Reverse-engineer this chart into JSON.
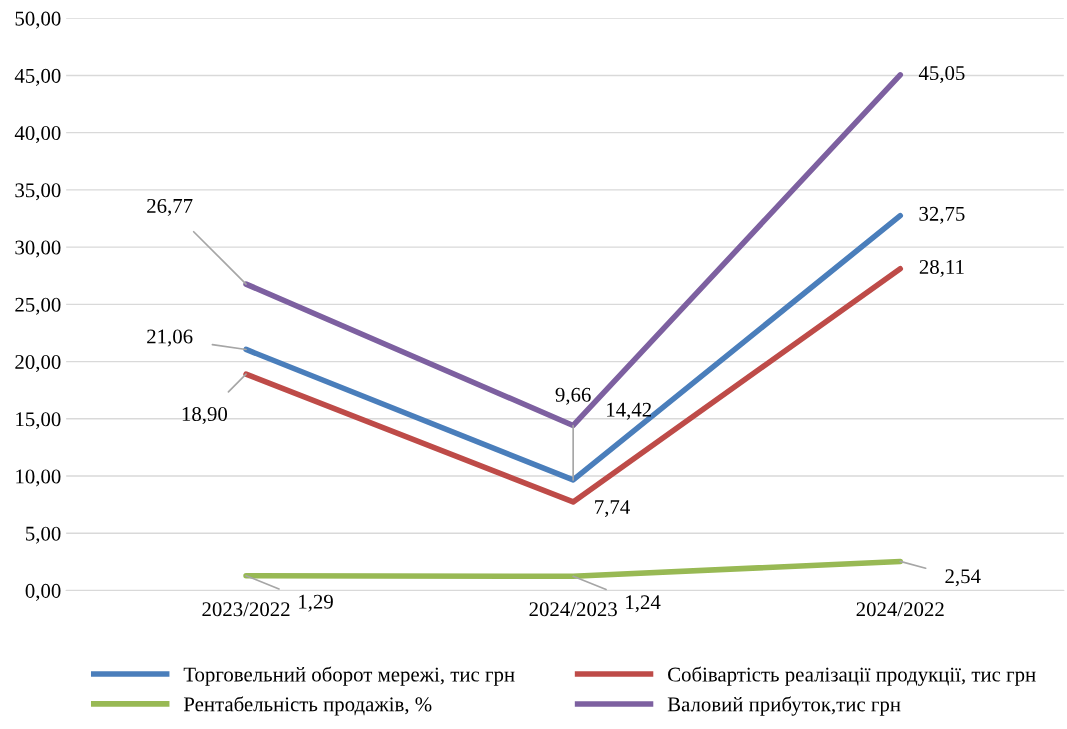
{
  "chart_data": {
    "type": "line",
    "categories": [
      "2023/2022",
      "2024/2023",
      "2024/2022"
    ],
    "series": [
      {
        "name": "Торговельний оборот мережі, тис грн",
        "color": "#4a7ebb",
        "values": [
          21.06,
          9.66,
          32.75
        ],
        "value_labels": [
          "21,06",
          "9,66",
          "32,75"
        ]
      },
      {
        "name": "Собівартість реалізації продукції, тис грн",
        "color": "#be4b48",
        "values": [
          18.9,
          7.74,
          28.11
        ],
        "value_labels": [
          "18,90",
          "7,74",
          "28,11"
        ]
      },
      {
        "name": "Рентабельність продажів, %",
        "color": "#98b954",
        "values": [
          1.29,
          1.24,
          2.54
        ],
        "value_labels": [
          "1,29",
          "1,24",
          "2,54"
        ]
      },
      {
        "name": "Валовий прибуток,тис грн",
        "color": "#7d60a0",
        "values": [
          26.77,
          14.42,
          45.05
        ],
        "value_labels": [
          "26,77",
          "14,42",
          "45,05"
        ]
      }
    ],
    "ylim": [
      0,
      50
    ],
    "yticks": [
      {
        "value": 0,
        "label": "0,00"
      },
      {
        "value": 5,
        "label": "5,00"
      },
      {
        "value": 10,
        "label": "10,00"
      },
      {
        "value": 15,
        "label": "15,00"
      },
      {
        "value": 20,
        "label": "20,00"
      },
      {
        "value": 25,
        "label": "25,00"
      },
      {
        "value": 30,
        "label": "30,00"
      },
      {
        "value": 35,
        "label": "35,00"
      },
      {
        "value": 40,
        "label": "40,00"
      },
      {
        "value": 45,
        "label": "45,00"
      },
      {
        "value": 50,
        "label": "50,00"
      }
    ],
    "grid": "y",
    "legend": "bottom",
    "marker": "none",
    "line_style": "solid"
  }
}
